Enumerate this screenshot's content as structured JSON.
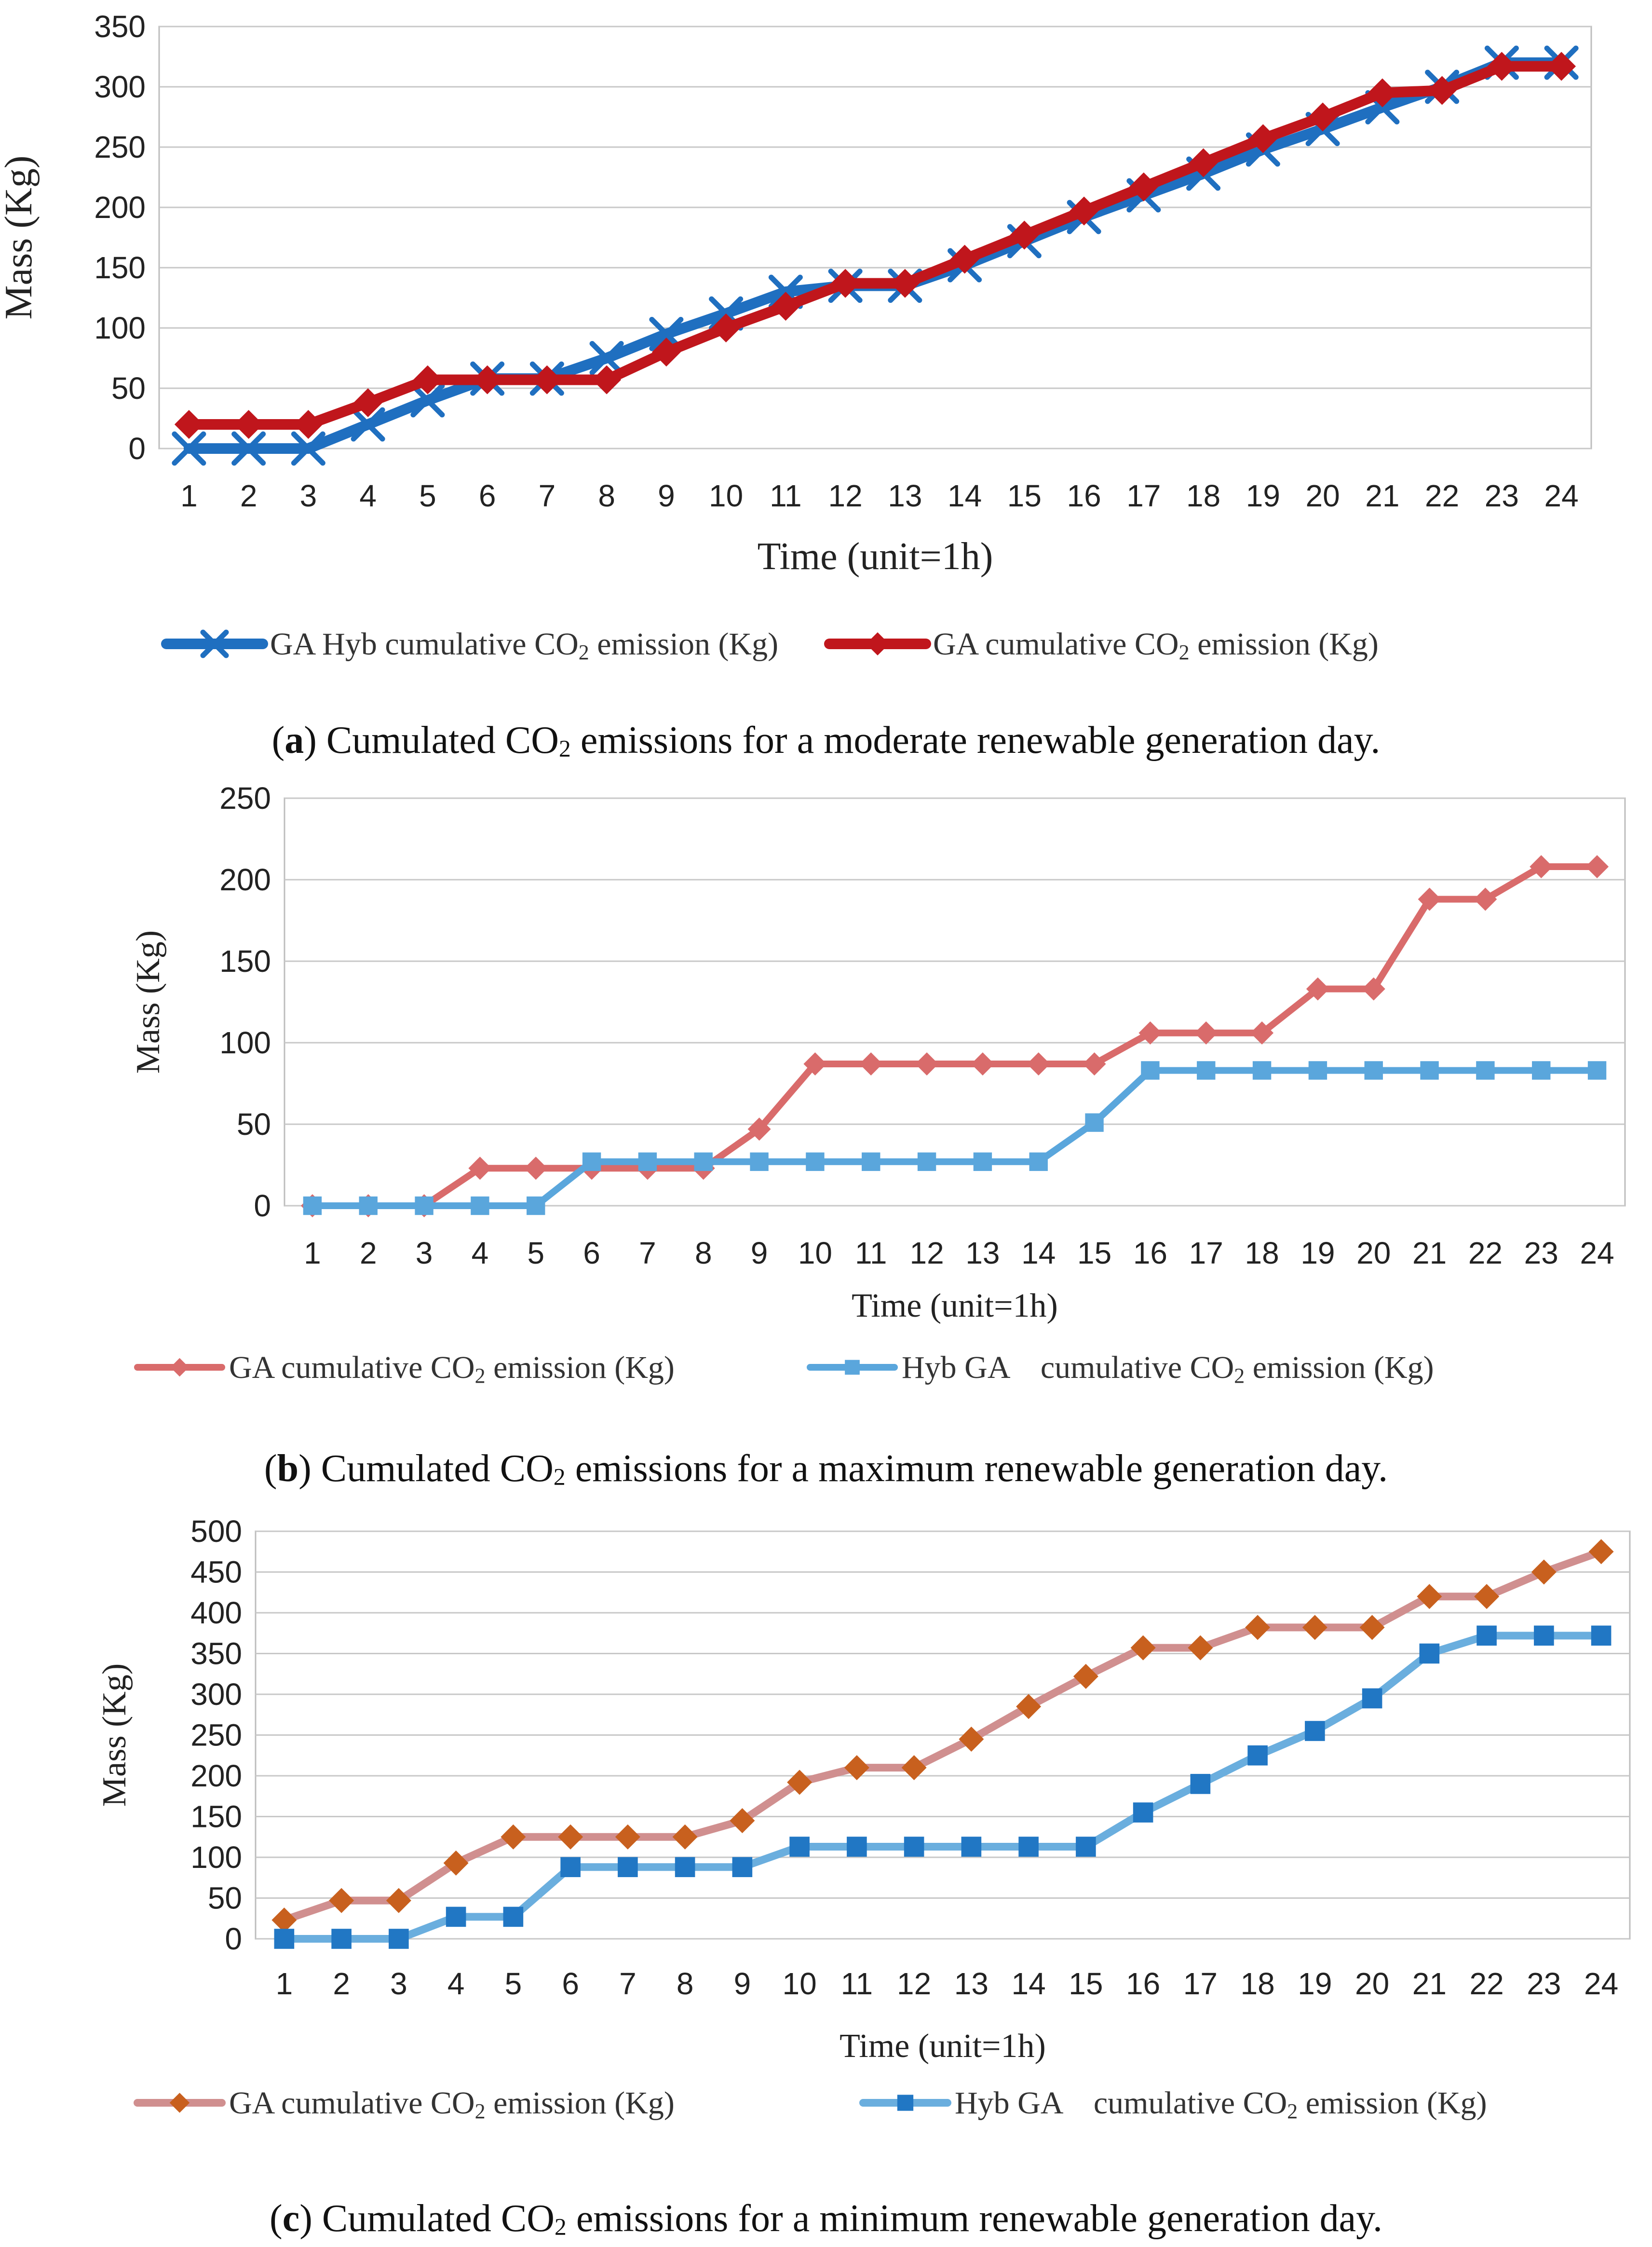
{
  "charts": [
    {
      "caption": {
        "letter": "a",
        "pre": "Cumulated CO",
        "sub": "2",
        "post": " emissions for a moderate renewable generation day."
      },
      "chart_data": {
        "type": "line",
        "ylabel": "Mass (Kg)",
        "xlabel": "Time (unit=1h)",
        "ylim": [
          0,
          350
        ],
        "ystep": 50,
        "categories": [
          "1",
          "2",
          "3",
          "4",
          "5",
          "6",
          "7",
          "8",
          "9",
          "10",
          "11",
          "12",
          "13",
          "14",
          "15",
          "16",
          "17",
          "18",
          "19",
          "20",
          "21",
          "22",
          "23",
          "24"
        ],
        "series": [
          {
            "name": "GA Hyb cumulative CO2 emission (Kg)",
            "legend_pre": "GA Hyb cumulative CO",
            "legend_sub": "2",
            "legend_post": " emission (Kg)",
            "color": "#1f6fc0",
            "marker": "x",
            "values": [
              0,
              0,
              0,
              20,
              40,
              58,
              58,
              75,
              95,
              112,
              130,
              135,
              135,
              152,
              172,
              192,
              210,
              228,
              248,
              265,
              283,
              300,
              320,
              320
            ]
          },
          {
            "name": "GA cumulative CO2 emission (Kg)",
            "legend_pre": "GA cumulative CO",
            "legend_sub": "2",
            "legend_post": " emission (Kg)",
            "color": "#c0161c",
            "marker": "diamond",
            "values": [
              20,
              20,
              20,
              38,
              57,
              57,
              57,
              57,
              80,
              100,
              118,
              137,
              137,
              157,
              177,
              197,
              217,
              237,
              257,
              275,
              295,
              297,
              317,
              317
            ]
          }
        ]
      }
    },
    {
      "caption": {
        "letter": "b",
        "pre": "Cumulated CO",
        "sub": "2",
        "post": " emissions for a maximum renewable generation day."
      },
      "chart_data": {
        "type": "line",
        "ylabel": "Mass (Kg)",
        "xlabel": "Time (unit=1h)",
        "ylim": [
          0,
          250
        ],
        "ystep": 50,
        "categories": [
          "1",
          "2",
          "3",
          "4",
          "5",
          "6",
          "7",
          "8",
          "9",
          "10",
          "11",
          "12",
          "13",
          "14",
          "15",
          "16",
          "17",
          "18",
          "19",
          "20",
          "21",
          "22",
          "23",
          "24"
        ],
        "series": [
          {
            "name": "GA cumulative CO2 emission (Kg)",
            "legend_pre": "GA cumulative CO",
            "legend_sub": "2",
            "legend_post": " emission (Kg)",
            "color": "#d96b6b",
            "marker": "diamond",
            "values": [
              0,
              0,
              0,
              23,
              23,
              23,
              23,
              23,
              47,
              87,
              87,
              87,
              87,
              87,
              87,
              106,
              106,
              106,
              133,
              133,
              188,
              188,
              208,
              208
            ]
          },
          {
            "name": "Hyb GA cumulative CO2 emission (Kg)",
            "legend_pre": "Hyb GA    cumulative CO",
            "legend_sub": "2",
            "legend_post": " emission (Kg)",
            "color": "#5aa6dc",
            "marker": "square",
            "values": [
              0,
              0,
              0,
              0,
              0,
              27,
              27,
              27,
              27,
              27,
              27,
              27,
              27,
              27,
              51,
              83,
              83,
              83,
              83,
              83,
              83,
              83,
              83,
              83
            ]
          }
        ]
      }
    },
    {
      "caption": {
        "letter": "c",
        "pre": "Cumulated CO",
        "sub": "2",
        "post": " emissions for a minimum renewable generation day."
      },
      "chart_data": {
        "type": "line",
        "ylabel": "Mass (Kg)",
        "xlabel": "Time (unit=1h)",
        "ylim": [
          0,
          500
        ],
        "ystep": 50,
        "categories": [
          "1",
          "2",
          "3",
          "4",
          "5",
          "6",
          "7",
          "8",
          "9",
          "10",
          "11",
          "12",
          "13",
          "14",
          "15",
          "16",
          "17",
          "18",
          "19",
          "20",
          "21",
          "22",
          "23",
          "24"
        ],
        "series": [
          {
            "name": "GA cumulative CO2 emission (Kg)",
            "legend_pre": "GA cumulative CO",
            "legend_sub": "2",
            "legend_post": " emission (Kg)",
            "color": "#d08f8f",
            "markerColor": "#c8601e",
            "marker": "diamond",
            "values": [
              23,
              47,
              47,
              93,
              125,
              125,
              125,
              125,
              145,
              192,
              210,
              210,
              245,
              285,
              322,
              357,
              357,
              382,
              382,
              382,
              420,
              420,
              450,
              475
            ]
          },
          {
            "name": "Hyb GA cumulative CO2 emission (Kg)",
            "legend_pre": "Hyb GA    cumulative CO",
            "legend_sub": "2",
            "legend_post": " emission (Kg)",
            "color": "#6aaede",
            "markerColor": "#2177c4",
            "marker": "square",
            "values": [
              0,
              0,
              0,
              27,
              27,
              88,
              88,
              88,
              88,
              113,
              113,
              113,
              113,
              113,
              113,
              155,
              190,
              225,
              255,
              295,
              350,
              372,
              372,
              372
            ]
          }
        ]
      }
    }
  ]
}
